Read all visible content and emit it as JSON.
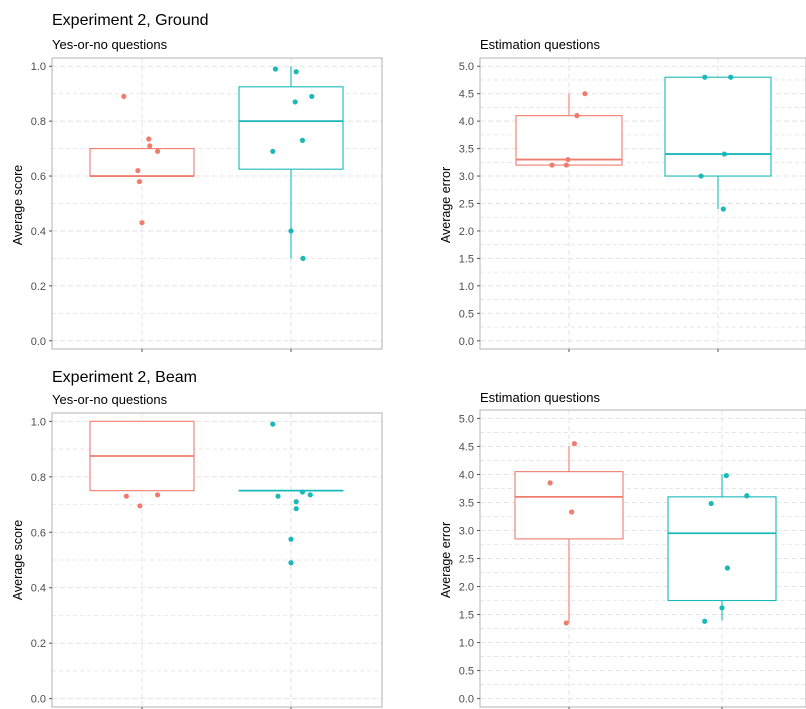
{
  "colors": {
    "series_a": "#f07c6e",
    "series_b": "#1ab8b8",
    "grid": "#e3e3e3",
    "panel_border": "#b3b3b3"
  },
  "section_titles": [
    "Experiment 2, Ground",
    "Experiment 2, Beam"
  ],
  "chart_data": [
    {
      "type": "box",
      "section": 0,
      "title": "Yes-or-no questions",
      "ylabel": "Average score",
      "ylim": [
        -0.03,
        1.03
      ],
      "yticks": [
        0.0,
        0.2,
        0.4,
        0.6,
        0.8,
        1.0
      ],
      "ytick_labels": [
        "0.0",
        "0.2",
        "0.4",
        "0.6",
        "0.8",
        "1.0"
      ],
      "grid": true,
      "series": [
        {
          "color_key": "series_a",
          "box": {
            "min": 0.6,
            "q1": 0.6,
            "median": 0.6,
            "q3": 0.7,
            "max": 0.7
          },
          "points": [
            [
              -0.35,
              0.89
            ],
            [
              0.13,
              0.735
            ],
            [
              0.15,
              0.71
            ],
            [
              0.3,
              0.69
            ],
            [
              -0.08,
              0.62
            ],
            [
              -0.05,
              0.58
            ],
            [
              0.0,
              0.43
            ]
          ]
        },
        {
          "color_key": "series_b",
          "box": {
            "min": 0.3,
            "q1": 0.625,
            "median": 0.8,
            "q3": 0.925,
            "max": 1.0
          },
          "points": [
            [
              -0.3,
              0.99
            ],
            [
              0.1,
              0.98
            ],
            [
              0.08,
              0.87
            ],
            [
              0.4,
              0.89
            ],
            [
              -0.35,
              0.69
            ],
            [
              0.22,
              0.73
            ],
            [
              0.0,
              0.4
            ],
            [
              0.23,
              0.3
            ]
          ]
        }
      ]
    },
    {
      "type": "box",
      "section": 0,
      "title": "Estimation questions",
      "ylabel": "Average error",
      "ylim": [
        -0.15,
        5.15
      ],
      "yticks": [
        0.0,
        0.5,
        1.0,
        1.5,
        2.0,
        2.5,
        3.0,
        3.5,
        4.0,
        4.5,
        5.0
      ],
      "ytick_labels": [
        "0.0",
        "0.5",
        "1.0",
        "1.5",
        "2.0",
        "2.5",
        "3.0",
        "3.5",
        "4.0",
        "4.5",
        "5.0"
      ],
      "grid": true,
      "series": [
        {
          "color_key": "series_a",
          "box": {
            "min": 3.2,
            "q1": 3.2,
            "median": 3.3,
            "q3": 4.1,
            "max": 4.5
          },
          "points": [
            [
              0.3,
              4.5
            ],
            [
              0.15,
              4.1
            ],
            [
              -0.32,
              3.2
            ],
            [
              -0.05,
              3.2
            ],
            [
              -0.02,
              3.3
            ]
          ]
        },
        {
          "color_key": "series_b",
          "box": {
            "min": 2.4,
            "q1": 3.0,
            "median": 3.4,
            "q3": 4.8,
            "max": 4.8
          },
          "points": [
            [
              -0.25,
              4.8
            ],
            [
              0.24,
              4.8
            ],
            [
              0.12,
              3.4
            ],
            [
              -0.32,
              3.0
            ],
            [
              0.1,
              2.4
            ]
          ]
        }
      ]
    },
    {
      "type": "box",
      "section": 1,
      "title": "Yes-or-no questions",
      "ylabel": "Average score",
      "ylim": [
        -0.03,
        1.03
      ],
      "yticks": [
        0.0,
        0.2,
        0.4,
        0.6,
        0.8,
        1.0
      ],
      "ytick_labels": [
        "0.0",
        "0.2",
        "0.4",
        "0.6",
        "0.8",
        "1.0"
      ],
      "grid": true,
      "series": [
        {
          "color_key": "series_a",
          "box": {
            "min": 0.75,
            "q1": 0.75,
            "median": 0.875,
            "q3": 1.0,
            "max": 1.0
          },
          "points": [
            [
              -0.3,
              0.73
            ],
            [
              0.3,
              0.735
            ],
            [
              -0.04,
              0.695
            ]
          ]
        },
        {
          "color_key": "series_b",
          "box": {
            "min": 0.75,
            "q1": 0.75,
            "median": 0.75,
            "q3": 0.75,
            "max": 0.75
          },
          "points": [
            [
              -0.35,
              0.99
            ],
            [
              -0.25,
              0.73
            ],
            [
              0.22,
              0.745
            ],
            [
              0.37,
              0.735
            ],
            [
              0.1,
              0.71
            ],
            [
              0.1,
              0.685
            ],
            [
              0.0,
              0.575
            ],
            [
              0.0,
              0.49
            ]
          ]
        }
      ]
    },
    {
      "type": "box",
      "section": 1,
      "title": "Estimation questions",
      "ylabel": "Average error",
      "ylim": [
        -0.15,
        5.15
      ],
      "yticks": [
        0.0,
        0.5,
        1.0,
        1.5,
        2.0,
        2.5,
        3.0,
        3.5,
        4.0,
        4.5,
        5.0
      ],
      "ytick_labels": [
        "0.0",
        "0.5",
        "1.0",
        "1.5",
        "2.0",
        "2.5",
        "3.0",
        "3.5",
        "4.0",
        "4.5",
        "5.0"
      ],
      "grid": true,
      "series": [
        {
          "color_key": "series_a",
          "box": {
            "min": 1.35,
            "q1": 2.85,
            "median": 3.6,
            "q3": 4.05,
            "max": 4.5
          },
          "points": [
            [
              0.1,
              4.55
            ],
            [
              -0.35,
              3.85
            ],
            [
              0.05,
              3.33
            ],
            [
              -0.05,
              1.35
            ]
          ]
        },
        {
          "color_key": "series_b",
          "box": {
            "min": 1.4,
            "q1": 1.75,
            "median": 2.95,
            "q3": 3.6,
            "max": 4.0
          },
          "points": [
            [
              0.08,
              3.98
            ],
            [
              0.46,
              3.62
            ],
            [
              -0.2,
              3.48
            ],
            [
              0.1,
              2.33
            ],
            [
              0.0,
              1.62
            ],
            [
              -0.32,
              1.38
            ]
          ]
        }
      ]
    }
  ]
}
